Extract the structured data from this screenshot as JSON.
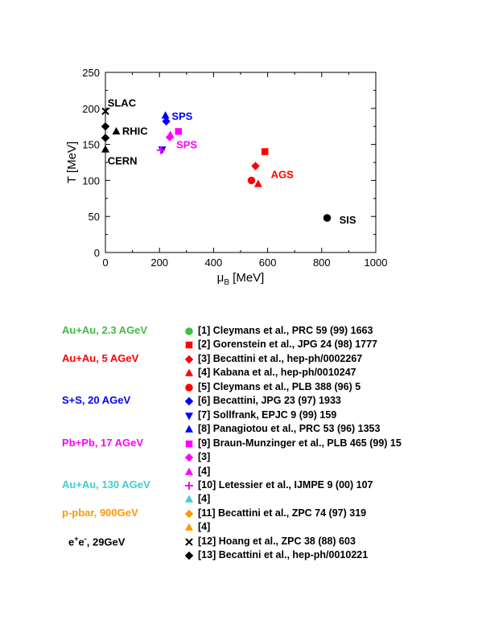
{
  "chart_data": {
    "type": "scatter",
    "xlabel_main": "μ",
    "xlabel_sub": "B",
    "xlabel_unit": " [MeV]",
    "ylabel": "T [MeV]",
    "xlim": [
      0,
      1000
    ],
    "ylim": [
      0,
      250
    ],
    "xticks": [
      "0",
      "200",
      "400",
      "600",
      "800",
      "1000"
    ],
    "yticks": [
      "0",
      "50",
      "100",
      "150",
      "200",
      "250"
    ],
    "xtick_values": [
      0,
      200,
      400,
      600,
      800,
      1000
    ],
    "ytick_values": [
      0,
      50,
      100,
      150,
      200,
      250
    ],
    "grid": false,
    "points": [
      {
        "x": 820,
        "y": 48,
        "marker": "circle",
        "color": "#000000"
      },
      {
        "x": 590,
        "y": 140,
        "marker": "square",
        "color": "#ff0000"
      },
      {
        "x": 555,
        "y": 120,
        "marker": "diamond",
        "color": "#ff0000"
      },
      {
        "x": 565,
        "y": 95,
        "marker": "triangle-up",
        "color": "#ff0000"
      },
      {
        "x": 540,
        "y": 100,
        "marker": "circle",
        "color": "#ff0000"
      },
      {
        "x": 225,
        "y": 182,
        "marker": "diamond",
        "color": "#0000ff"
      },
      {
        "x": 222,
        "y": 190,
        "marker": "triangle-up",
        "color": "#0000ff"
      },
      {
        "x": 210,
        "y": 143,
        "marker": "triangle-down",
        "color": "#0000ff"
      },
      {
        "x": 270,
        "y": 168,
        "marker": "square",
        "color": "#ff00ff"
      },
      {
        "x": 238,
        "y": 160,
        "marker": "diamond",
        "color": "#ff00ff"
      },
      {
        "x": 240,
        "y": 163,
        "marker": "triangle-up",
        "color": "#ff00ff"
      },
      {
        "x": 205,
        "y": 142,
        "marker": "plus",
        "color": "#ff00ff"
      },
      {
        "x": 40,
        "y": 168,
        "marker": "triangle-up",
        "color": "#000000"
      },
      {
        "x": 0,
        "y": 196,
        "marker": "cross",
        "color": "#000000"
      },
      {
        "x": 0,
        "y": 175,
        "marker": "diamond",
        "color": "#000000"
      },
      {
        "x": 0,
        "y": 159,
        "marker": "diamond",
        "color": "#000000"
      },
      {
        "x": 0,
        "y": 143,
        "marker": "triangle-up",
        "color": "#000000"
      }
    ],
    "annotations": [
      {
        "text": "SLAC",
        "x": 8,
        "y": 208,
        "color": "#000000"
      },
      {
        "text": "RHIC",
        "x": 62,
        "y": 169,
        "color": "#000000"
      },
      {
        "text": "CERN",
        "x": 8,
        "y": 128,
        "color": "#000000"
      },
      {
        "text": "SPS",
        "x": 245,
        "y": 190,
        "color": "#0000ff"
      },
      {
        "text": "SPS",
        "x": 262,
        "y": 150,
        "color": "#ff00ff"
      },
      {
        "text": "AGS",
        "x": 612,
        "y": 109,
        "color": "#ff0000"
      },
      {
        "text": "SIS",
        "x": 865,
        "y": 46,
        "color": "#000000"
      }
    ]
  },
  "legend": {
    "groups": [
      {
        "label": "Au+Au, 2.3 AGeV",
        "color": "#44bb44",
        "row": 0
      },
      {
        "label": "Au+Au, 5 AGeV",
        "color": "#ff0000",
        "row": 2
      },
      {
        "label": "S+S, 20 AGeV",
        "color": "#0000ff",
        "row": 5
      },
      {
        "label": "Pb+Pb, 17 AGeV",
        "color": "#ff00ff",
        "row": 8
      },
      {
        "label": "Au+Au, 130 AGeV",
        "color": "#44cccc",
        "row": 11
      },
      {
        "label": "p-pbar, 900GeV",
        "color": "#ff9900",
        "row": 13
      },
      {
        "label_pre": "e",
        "label_sup1": "+",
        "label_mid": "e",
        "label_sup2": "-",
        "label_post": ", 29GeV",
        "color": "#000000",
        "row": 15
      }
    ],
    "entries": [
      {
        "marker": "circle",
        "color": "#44bb44",
        "text": "[1] Cleymans et al., PRC 59 (99) 1663"
      },
      {
        "marker": "square",
        "color": "#ff0000",
        "text": "[2] Gorenstein et al., JPG 24 (98) 1777"
      },
      {
        "marker": "diamond",
        "color": "#ff0000",
        "text": "[3] Becattini et al., hep-ph/0002267"
      },
      {
        "marker": "triangle-up",
        "color": "#ff0000",
        "text": "[4] Kabana et al., hep-ph/0010247"
      },
      {
        "marker": "circle",
        "color": "#ff0000",
        "text": "[5] Cleymans et al., PLB 388 (96) 5"
      },
      {
        "marker": "diamond",
        "color": "#0000ff",
        "text": "[6] Becattini, JPG 23 (97) 1933"
      },
      {
        "marker": "triangle-down",
        "color": "#0000ff",
        "text": "[7] Sollfrank, EPJC 9 (99) 159"
      },
      {
        "marker": "triangle-up",
        "color": "#0000ff",
        "text": "[8] Panagiotou et al., PRC 53 (96) 1353"
      },
      {
        "marker": "square",
        "color": "#ff00ff",
        "text": "[9] Braun-Munzinger et al., PLB 465 (99) 15"
      },
      {
        "marker": "diamond",
        "color": "#ff00ff",
        "text": "[3]"
      },
      {
        "marker": "triangle-up",
        "color": "#ff00ff",
        "text": "[4]"
      },
      {
        "marker": "plus",
        "color": "#ff00ff",
        "text": "[10] Letessier et al., IJMPE 9 (00) 107"
      },
      {
        "marker": "triangle-up",
        "color": "#44cccc",
        "text": "[4]"
      },
      {
        "marker": "diamond",
        "color": "#ff9900",
        "text": "[11] Becattini et al., ZPC 74 (97) 319"
      },
      {
        "marker": "triangle-up",
        "color": "#ff9900",
        "text": "[4]"
      },
      {
        "marker": "cross",
        "color": "#000000",
        "text": "[12] Hoang et al., ZPC 38 (88) 603"
      },
      {
        "marker": "diamond",
        "color": "#000000",
        "text": "[13] Becattini et al., hep-ph/0010221"
      }
    ]
  }
}
